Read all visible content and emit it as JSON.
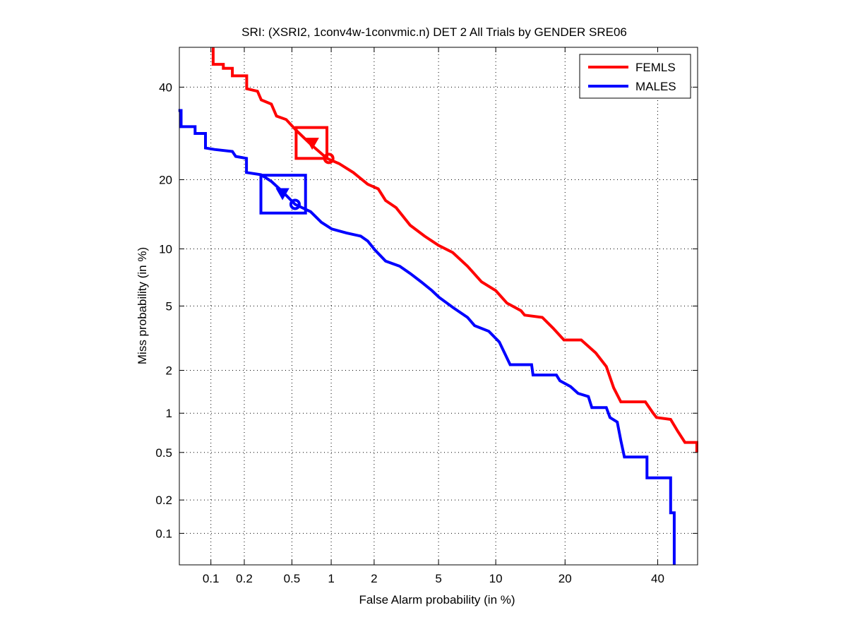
{
  "chart_data": {
    "type": "line",
    "scale": "probit",
    "title": "SRI: (XSRI2, 1conv4w-1convmic.n) DET 2 All Trials by GENDER SRE06",
    "xlabel": "False Alarm probability (in %)",
    "ylabel": "Miss probability (in %)",
    "xlim": [
      0.05,
      50
    ],
    "ylim": [
      0.05,
      50
    ],
    "xticks": [
      0.1,
      0.2,
      0.5,
      1,
      2,
      5,
      10,
      20,
      40
    ],
    "xtick_labels": [
      "0.1",
      "0.2",
      "0.5",
      "1",
      "2",
      "5",
      "10",
      "20",
      "40"
    ],
    "yticks": [
      0.1,
      0.2,
      0.5,
      1,
      2,
      5,
      10,
      20,
      40
    ],
    "ytick_labels": [
      "0.1",
      "0.2",
      "0.5",
      "1",
      "2",
      "5",
      "10",
      "20",
      "40"
    ],
    "grid": true,
    "legend_position": "top-right",
    "series": [
      {
        "name": "FEMLS",
        "color": "#ff0000",
        "points": [
          [
            0.105,
            50
          ],
          [
            0.105,
            45.7
          ],
          [
            0.13,
            45.7
          ],
          [
            0.13,
            44.7
          ],
          [
            0.157,
            44.7
          ],
          [
            0.157,
            42.8
          ],
          [
            0.21,
            42.8
          ],
          [
            0.21,
            39.6
          ],
          [
            0.26,
            39
          ],
          [
            0.28,
            36.9
          ],
          [
            0.34,
            35.9
          ],
          [
            0.375,
            33.1
          ],
          [
            0.45,
            32.3
          ],
          [
            0.54,
            29.9
          ],
          [
            0.7,
            26.9
          ],
          [
            0.93,
            24
          ],
          [
            1.14,
            23
          ],
          [
            1.44,
            21.3
          ],
          [
            1.81,
            19.2
          ],
          [
            2.13,
            18.4
          ],
          [
            2.38,
            16.5
          ],
          [
            2.78,
            15.4
          ],
          [
            3.4,
            12.9
          ],
          [
            4.15,
            11.5
          ],
          [
            5.0,
            10.4
          ],
          [
            6.0,
            9.6
          ],
          [
            7.2,
            8.2
          ],
          [
            8.5,
            6.8
          ],
          [
            10,
            6.1
          ],
          [
            11.3,
            5.2
          ],
          [
            13.1,
            4.7
          ],
          [
            13.6,
            4.43
          ],
          [
            16.2,
            4.3
          ],
          [
            17.9,
            3.72
          ],
          [
            19.8,
            3.14
          ],
          [
            23,
            3.14
          ],
          [
            25.9,
            2.6
          ],
          [
            28.1,
            2.12
          ],
          [
            29.7,
            1.52
          ],
          [
            31.3,
            1.21
          ],
          [
            37,
            1.21
          ],
          [
            38.8,
            1.01
          ],
          [
            39.7,
            0.93
          ],
          [
            43.2,
            0.9
          ],
          [
            45,
            0.73
          ],
          [
            46.8,
            0.6
          ],
          [
            49.8,
            0.6
          ],
          [
            49.8,
            0.5
          ]
        ],
        "confidence_box": {
          "fa": [
            0.54,
            0.93
          ],
          "miss": [
            24,
            30.5
          ]
        },
        "min_dcf_point": [
          0.72,
          27.2
        ],
        "actual_dcf_point": [
          0.96,
          24
        ]
      },
      {
        "name": "MALES",
        "color": "#0000ff",
        "points": [
          [
            0.049,
            34.4
          ],
          [
            0.052,
            34.4
          ],
          [
            0.052,
            30.7
          ],
          [
            0.071,
            30.7
          ],
          [
            0.071,
            29.2
          ],
          [
            0.089,
            29.2
          ],
          [
            0.089,
            26.1
          ],
          [
            0.108,
            25.8
          ],
          [
            0.157,
            25.4
          ],
          [
            0.168,
            24.4
          ],
          [
            0.209,
            24
          ],
          [
            0.209,
            21.3
          ],
          [
            0.278,
            20.9
          ],
          [
            0.34,
            19.7
          ],
          [
            0.417,
            18
          ],
          [
            0.53,
            15.9
          ],
          [
            0.7,
            14.8
          ],
          [
            0.845,
            13.3
          ],
          [
            1.01,
            12.4
          ],
          [
            1.29,
            11.9
          ],
          [
            1.62,
            11.5
          ],
          [
            1.81,
            10.9
          ],
          [
            2.02,
            9.9
          ],
          [
            2.38,
            8.7
          ],
          [
            2.93,
            8.2
          ],
          [
            3.42,
            7.5
          ],
          [
            3.96,
            6.8
          ],
          [
            4.58,
            6.1
          ],
          [
            5.03,
            5.6
          ],
          [
            6.03,
            4.9
          ],
          [
            7.2,
            4.3
          ],
          [
            7.84,
            3.84
          ],
          [
            9.25,
            3.55
          ],
          [
            10.4,
            3.05
          ],
          [
            11,
            2.61
          ],
          [
            11.7,
            2.18
          ],
          [
            14.6,
            2.18
          ],
          [
            14.8,
            1.86
          ],
          [
            18.5,
            1.86
          ],
          [
            19.1,
            1.7
          ],
          [
            21,
            1.55
          ],
          [
            22.4,
            1.39
          ],
          [
            24.4,
            1.32
          ],
          [
            25.1,
            1.1
          ],
          [
            28.1,
            1.1
          ],
          [
            28.9,
            0.93
          ],
          [
            30.5,
            0.86
          ],
          [
            31.3,
            0.62
          ],
          [
            32.1,
            0.46
          ],
          [
            37.4,
            0.46
          ],
          [
            37.4,
            0.31
          ],
          [
            43.2,
            0.31
          ],
          [
            43.2,
            0.154
          ],
          [
            44.1,
            0.154
          ],
          [
            44.1,
            0.05
          ]
        ],
        "confidence_box": {
          "fa": [
            0.278,
            0.64
          ],
          "miss": [
            14.6,
            20.8
          ]
        },
        "min_dcf_point": [
          0.42,
          17.7
        ],
        "actual_dcf_point": [
          0.53,
          15.9
        ]
      }
    ]
  }
}
